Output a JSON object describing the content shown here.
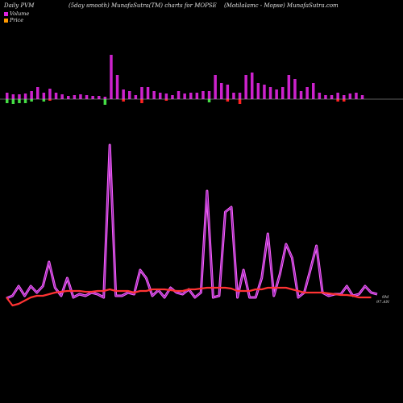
{
  "header": {
    "left": "Daily PVM",
    "middle": "(5day smooth) MunafaSutra(TM) charts for MOPSE",
    "right": "(Motilalamc - Mopse) MunafaSutra.com"
  },
  "legend": {
    "volume_label": "Volume",
    "price_label": "Price",
    "volume_color": "#dd22dd",
    "price_color": "#ff9900"
  },
  "end_labels": {
    "top": "9M",
    "bottom": "97.AN"
  },
  "colors": {
    "background": "#000000",
    "volume_up": "#cc22cc",
    "volume_down_red": "#ff2222",
    "volume_down_green": "#44dd44",
    "baseline": "#bbbbbb",
    "price_line": "#ff3333",
    "volume_line": "#cc33cc"
  },
  "chart_data": {
    "type": "line",
    "title": "",
    "xlabel": "",
    "ylabel": "",
    "volume_bars": {
      "up": [
        8,
        6,
        6,
        7,
        10,
        15,
        8,
        13,
        8,
        6,
        4,
        5,
        6,
        5,
        4,
        4,
        3,
        55,
        30,
        12,
        10,
        5,
        15,
        15,
        10,
        8,
        7,
        5,
        10,
        7,
        8,
        8,
        10,
        10,
        30,
        20,
        18,
        8,
        8,
        30,
        33,
        20,
        18,
        15,
        12,
        15,
        30,
        25,
        10,
        15,
        20,
        8,
        5,
        5,
        8,
        5,
        7,
        8,
        5
      ],
      "down": [
        5,
        6,
        5,
        5,
        3,
        0,
        3,
        2,
        0,
        0,
        0,
        0,
        0,
        0,
        0,
        0,
        7,
        0,
        0,
        3,
        0,
        0,
        5,
        0,
        0,
        0,
        2,
        0,
        0,
        0,
        0,
        0,
        0,
        4,
        0,
        0,
        3,
        0,
        6,
        0,
        0,
        0,
        0,
        0,
        0,
        0,
        0,
        0,
        0,
        0,
        0,
        0,
        0,
        0,
        3,
        3,
        0,
        0,
        0
      ],
      "down_color": [
        "green",
        "green",
        "green",
        "green",
        "green",
        "none",
        "green",
        "red",
        "none",
        "none",
        "none",
        "none",
        "none",
        "none",
        "none",
        "none",
        "green",
        "none",
        "none",
        "red",
        "none",
        "none",
        "red",
        "none",
        "none",
        "none",
        "red",
        "none",
        "none",
        "none",
        "none",
        "none",
        "none",
        "green",
        "none",
        "none",
        "red",
        "none",
        "red",
        "none",
        "none",
        "none",
        "none",
        "none",
        "none",
        "none",
        "none",
        "none",
        "none",
        "none",
        "none",
        "none",
        "none",
        "none",
        "red",
        "red",
        "none",
        "none",
        "none"
      ]
    },
    "series": [
      {
        "name": "Volume",
        "values": [
          5,
          8,
          20,
          8,
          20,
          12,
          20,
          50,
          18,
          8,
          30,
          6,
          10,
          8,
          12,
          10,
          6,
          195,
          8,
          8,
          12,
          10,
          40,
          30,
          8,
          15,
          6,
          18,
          12,
          10,
          16,
          6,
          12,
          138,
          6,
          8,
          112,
          118,
          6,
          40,
          6,
          6,
          30,
          85,
          8,
          35,
          72,
          55,
          6,
          12,
          40,
          70,
          12,
          8,
          10,
          10,
          20,
          8,
          10,
          20,
          12,
          10
        ]
      },
      {
        "name": "Price",
        "values": [
          6,
          -4,
          -2,
          2,
          6,
          8,
          8,
          10,
          12,
          13,
          14,
          14,
          14,
          13,
          13,
          14,
          14,
          16,
          14,
          14,
          14,
          12,
          14,
          14,
          16,
          16,
          16,
          15,
          14,
          14,
          16,
          16,
          17,
          18,
          18,
          18,
          18,
          17,
          14,
          14,
          14,
          16,
          16,
          18,
          18,
          18,
          18,
          16,
          14,
          12,
          12,
          12,
          12,
          11,
          10,
          9,
          9,
          8,
          6,
          6,
          6
        ]
      }
    ]
  }
}
